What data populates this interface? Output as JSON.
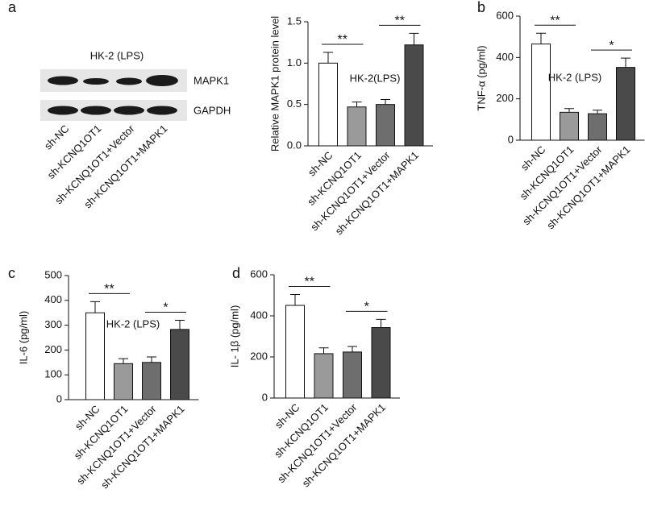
{
  "panels": [
    "a",
    "b",
    "c",
    "d"
  ],
  "blot": {
    "title": "HK-2 (LPS)",
    "bands": [
      "MAPK1",
      "GAPDH"
    ],
    "lanes": [
      "sh-NC",
      "sh-KCNQ1OT1",
      "sh-KCNQ1OT1+Vector",
      "sh-KCNQ1OT1+MAPK1"
    ]
  },
  "chart_data": [
    {
      "type": "bar",
      "y_label": "Relative MAPK1 protein level",
      "annotation": "HK-2(LPS)",
      "categories": [
        "sh-NC",
        "sh-KCNQ1OT1",
        "sh-KCNQ1OT1+Vector",
        "sh-KCNQ1OT1+MAPK1"
      ],
      "values": [
        1.0,
        0.47,
        0.5,
        1.22
      ],
      "errors": [
        0.13,
        0.06,
        0.06,
        0.14
      ],
      "colors": [
        "#ffffff",
        "#9a9a9a",
        "#6e6e6e",
        "#4a4a4a"
      ],
      "ylim": [
        0,
        1.5
      ],
      "yticks": [
        {
          "value": 0,
          "label": "0.0"
        },
        0.5,
        {
          "value": 1,
          "label": "1.0"
        },
        1.5
      ],
      "significance": [
        "**",
        "**"
      ]
    },
    {
      "type": "bar",
      "y_label": "TNF-α (pg/ml)",
      "annotation": "HK-2 (LPS)",
      "categories": [
        "sh-NC",
        "sh-KCNQ1OT1",
        "sh-KCNQ1OT1+Vector",
        "sh-KCNQ1OT1+MAPK1"
      ],
      "values": [
        465,
        135,
        128,
        352
      ],
      "errors": [
        52,
        18,
        17,
        45
      ],
      "colors": [
        "#ffffff",
        "#9a9a9a",
        "#6e6e6e",
        "#4a4a4a"
      ],
      "ylim": [
        0,
        600
      ],
      "yticks": [
        0,
        200,
        400,
        600
      ],
      "significance": [
        "**",
        "*"
      ]
    },
    {
      "type": "bar",
      "y_label": "IL-6 (pg/ml)",
      "annotation": "HK-2 (LPS)",
      "categories": [
        "sh-NC",
        "sh-KCNQ1OT1",
        "sh-KCNQ1OT1+Vector",
        "sh-KCNQ1OT1+MAPK1"
      ],
      "values": [
        350,
        145,
        150,
        283
      ],
      "errors": [
        45,
        20,
        22,
        37
      ],
      "colors": [
        "#ffffff",
        "#9a9a9a",
        "#6e6e6e",
        "#4a4a4a"
      ],
      "ylim": [
        0,
        500
      ],
      "yticks": [
        0,
        100,
        200,
        300,
        400,
        500
      ],
      "significance": [
        "**",
        "*"
      ]
    },
    {
      "type": "bar",
      "y_label": "IL- 1β (pg/ml)",
      "categories": [
        "sh-NC",
        "sh-KCNQ1OT1",
        "sh-KCNQ1OT1+Vector",
        "sh-KCNQ1OT1+MAPK1"
      ],
      "values": [
        451,
        216,
        224,
        343
      ],
      "errors": [
        53,
        28,
        27,
        40
      ],
      "colors": [
        "#ffffff",
        "#9a9a9a",
        "#6e6e6e",
        "#4a4a4a"
      ],
      "ylim": [
        0,
        600
      ],
      "yticks": [
        0,
        200,
        400,
        600
      ],
      "significance": [
        "**",
        "*"
      ]
    }
  ]
}
